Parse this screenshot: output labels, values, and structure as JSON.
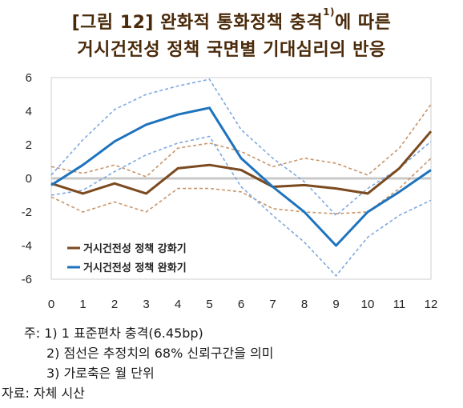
{
  "title_line1_prefix": "[그림 12] 완화적 통화정책 충격",
  "title_line1_sup": "1)",
  "title_line1_suffix": "에 따른",
  "title_line2": "거시건전성 정책 국면별 기대심리의 반응",
  "notes": {
    "n1": "주: 1) 1  표준편차  충격(6.45bp)",
    "n2": "2) 점선은  추정치의  68%  신뢰구간을  의미",
    "n3": "3) 가로축은  월  단위",
    "source": "자료: 자체  시산"
  },
  "chart_data": {
    "type": "line",
    "x": [
      0,
      1,
      2,
      3,
      4,
      5,
      6,
      7,
      8,
      9,
      10,
      11,
      12
    ],
    "ylim": [
      -6,
      6
    ],
    "yticks": [
      -6,
      -4,
      -2,
      0,
      2,
      4,
      6
    ],
    "zero_line": true,
    "legend_placement": "bottom-left",
    "series": [
      {
        "name": "거시건전성 정책 강화기",
        "color": "#7b4a1e",
        "values": [
          -0.3,
          -0.9,
          -0.3,
          -0.9,
          0.6,
          0.8,
          0.5,
          -0.5,
          -0.4,
          -0.6,
          -0.9,
          0.6,
          2.8
        ],
        "upper": [
          0.7,
          0.3,
          0.8,
          0.1,
          1.8,
          2.1,
          1.6,
          0.7,
          1.2,
          0.9,
          0.2,
          1.8,
          4.4
        ],
        "lower": [
          -1.1,
          -2.0,
          -1.4,
          -2.0,
          -0.6,
          -0.6,
          -0.8,
          -1.8,
          -2.0,
          -2.1,
          -2.0,
          -0.6,
          1.2
        ]
      },
      {
        "name": "거시건전성 정책 완화기",
        "color": "#1e73be",
        "values": [
          -0.4,
          0.8,
          2.2,
          3.2,
          3.8,
          4.2,
          1.2,
          -0.5,
          -2.0,
          -4.0,
          -2.0,
          -0.8,
          0.5
        ],
        "upper": [
          0.2,
          2.3,
          4.1,
          5.0,
          5.5,
          5.9,
          2.9,
          1.2,
          -0.2,
          -2.2,
          -0.6,
          0.6,
          2.2
        ],
        "lower": [
          -1.0,
          -0.7,
          0.4,
          1.4,
          2.1,
          2.5,
          -0.5,
          -2.2,
          -3.8,
          -5.8,
          -3.5,
          -2.2,
          -1.3
        ]
      }
    ]
  }
}
